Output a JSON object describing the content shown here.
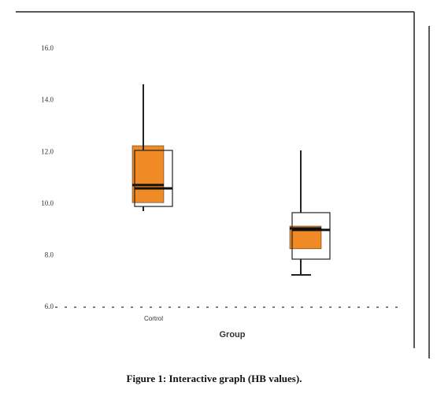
{
  "chart_data": {
    "type": "box",
    "caption": "Figure 1: Interactive graph (HB values).",
    "x_label": "Group",
    "categories": [
      "Cortrol",
      null
    ],
    "ylim": [
      6,
      17
    ],
    "yticks": [
      {
        "value": 6,
        "label": "6.0"
      },
      {
        "value": 8,
        "label": "8.0"
      },
      {
        "value": 10,
        "label": "10.0"
      },
      {
        "value": 12,
        "label": "12.0"
      },
      {
        "value": 14,
        "label": "14.0"
      },
      {
        "value": 16,
        "label": "16.0"
      }
    ],
    "series": [
      {
        "color": "#f08a24",
        "q1": [
          10.05,
          8.26
        ],
        "median": [
          10.73,
          9.05
        ],
        "q3": [
          12.25,
          9.14
        ]
      },
      {
        "color": "none",
        "q1": [
          9.9,
          7.86
        ],
        "median": [
          10.6,
          8.99
        ],
        "q3": [
          12.07,
          9.66
        ],
        "whisker_low": [
          9.72,
          7.25
        ],
        "whisker_high": [
          14.63,
          12.07
        ]
      }
    ]
  }
}
